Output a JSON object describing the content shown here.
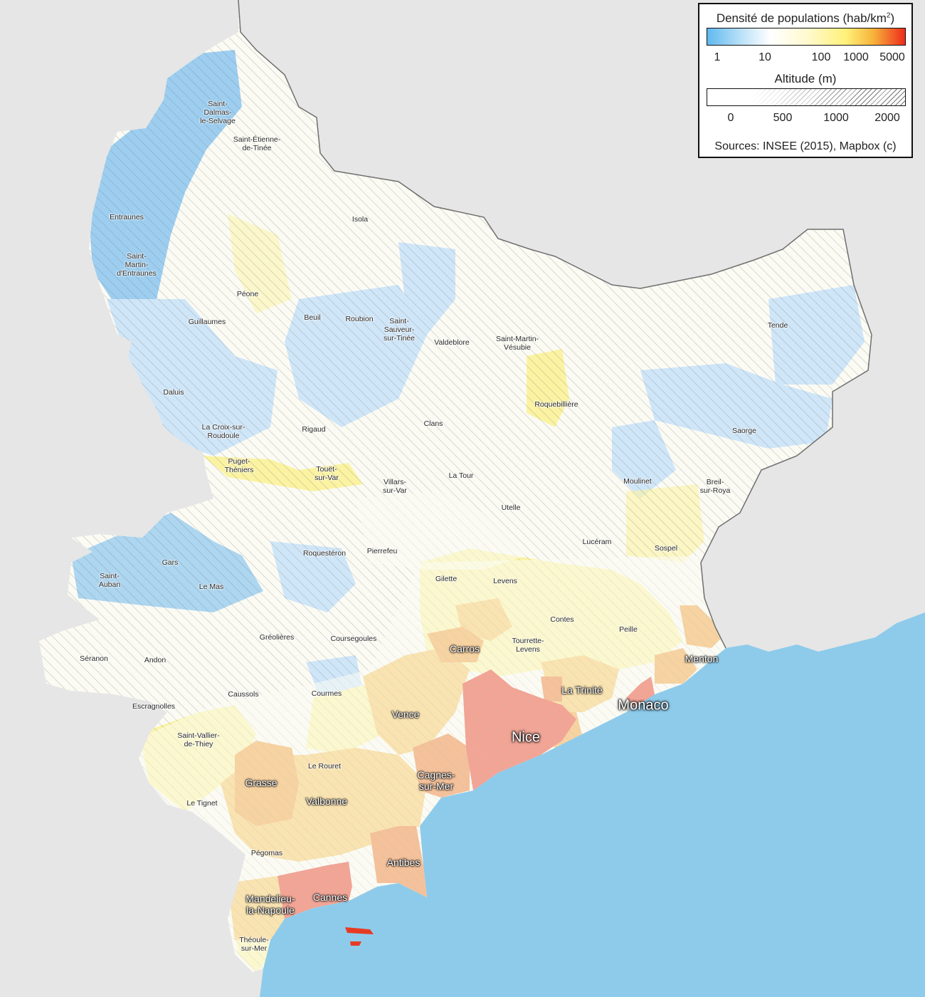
{
  "legend": {
    "density_title": "Densité de populations (hab/km",
    "density_sup": "2",
    "density_title_end": ")",
    "density_ticks": [
      "1",
      "10",
      "100",
      "1000",
      "5000"
    ],
    "altitude_title": "Altitude (m)",
    "altitude_ticks": [
      "0",
      "500",
      "1000",
      "2000"
    ],
    "sources": "Sources: INSEE (2015), Mapbox (c)"
  },
  "colors": {
    "sea": "#8ecbeb",
    "outside": "#e6e6e6",
    "border": "#6f6f6f",
    "very_low": "#8cc6ee",
    "low": "#cfe6f8",
    "rural": "#fbfbf4",
    "medium": "#fbf3a2",
    "urban_light": "#f6c660",
    "urban": "#f2a23d",
    "dense": "#ea7b2e",
    "very_dense": "#e63b23",
    "hatch": "#777777"
  },
  "places": [
    {
      "name": "Saint-\nDalmas-\nle-Selvage",
      "size": "small"
    },
    {
      "name": "Saint-Étienne-\nde-Tinée",
      "size": "small"
    },
    {
      "name": "Entraunes",
      "size": "small"
    },
    {
      "name": "Isola",
      "size": "small"
    },
    {
      "name": "Saint-\nMartin-\nd'Entraunes",
      "size": "small"
    },
    {
      "name": "Péone",
      "size": "small"
    },
    {
      "name": "Beuil",
      "size": "small"
    },
    {
      "name": "Roubion",
      "size": "small"
    },
    {
      "name": "Saint-\nSauveur-\nsur-Tinée",
      "size": "small"
    },
    {
      "name": "Guillaumes",
      "size": "small"
    },
    {
      "name": "Valdeblore",
      "size": "small"
    },
    {
      "name": "Saint-Martin-\nVésubie",
      "size": "small"
    },
    {
      "name": "Tende",
      "size": "small"
    },
    {
      "name": "Daluis",
      "size": "small"
    },
    {
      "name": "Roquebillière",
      "size": "small"
    },
    {
      "name": "Clans",
      "size": "small"
    },
    {
      "name": "La Croix-sur-\nRoudoule",
      "size": "small"
    },
    {
      "name": "Rigaud",
      "size": "small"
    },
    {
      "name": "Saorge",
      "size": "small"
    },
    {
      "name": "Puget-\nThéniers",
      "size": "small"
    },
    {
      "name": "Touët-\nsur-Var",
      "size": "small"
    },
    {
      "name": "La Tour",
      "size": "small"
    },
    {
      "name": "Villars-\nsur-Var",
      "size": "small"
    },
    {
      "name": "Moulinet",
      "size": "small"
    },
    {
      "name": "Breil-\nsur-Roya",
      "size": "small"
    },
    {
      "name": "Utelle",
      "size": "small"
    },
    {
      "name": "Lucéram",
      "size": "small"
    },
    {
      "name": "Sospel",
      "size": "small"
    },
    {
      "name": "Roquestéron",
      "size": "small"
    },
    {
      "name": "Pierrefeu",
      "size": "small"
    },
    {
      "name": "Gars",
      "size": "small"
    },
    {
      "name": "Saint-\nAuban",
      "size": "small"
    },
    {
      "name": "Gilette",
      "size": "small"
    },
    {
      "name": "Levens",
      "size": "small"
    },
    {
      "name": "Le Mas",
      "size": "small"
    },
    {
      "name": "Contes",
      "size": "small"
    },
    {
      "name": "Peille",
      "size": "small"
    },
    {
      "name": "Gréolières",
      "size": "small"
    },
    {
      "name": "Coursegoules",
      "size": "small"
    },
    {
      "name": "Tourrette-\nLevens",
      "size": "small"
    },
    {
      "name": "Séranon",
      "size": "small"
    },
    {
      "name": "Andon",
      "size": "small"
    },
    {
      "name": "Caussols",
      "size": "small"
    },
    {
      "name": "Courmes",
      "size": "small"
    },
    {
      "name": "Escragnolles",
      "size": "small"
    },
    {
      "name": "Saint-Vallier-\nde-Thiey",
      "size": "small"
    },
    {
      "name": "Le Rouret",
      "size": "small"
    },
    {
      "name": "Le Tignet",
      "size": "small"
    },
    {
      "name": "Pégomas",
      "size": "small"
    },
    {
      "name": "Théoule-\nsur-Mer",
      "size": "small"
    },
    {
      "name": "Carros",
      "size": "medium"
    },
    {
      "name": "Menton",
      "size": "medium"
    },
    {
      "name": "La Trinité",
      "size": "medium"
    },
    {
      "name": "Vence",
      "size": "medium"
    },
    {
      "name": "Cagnes-\nsur-Mer",
      "size": "medium"
    },
    {
      "name": "Grasse",
      "size": "medium"
    },
    {
      "name": "Valbonne",
      "size": "medium"
    },
    {
      "name": "Antibes",
      "size": "medium"
    },
    {
      "name": "Cannes",
      "size": "medium"
    },
    {
      "name": "Mandelieu-\nla-Napoule",
      "size": "medium"
    },
    {
      "name": "Monaco",
      "size": "large"
    },
    {
      "name": "Nice",
      "size": "large"
    }
  ]
}
